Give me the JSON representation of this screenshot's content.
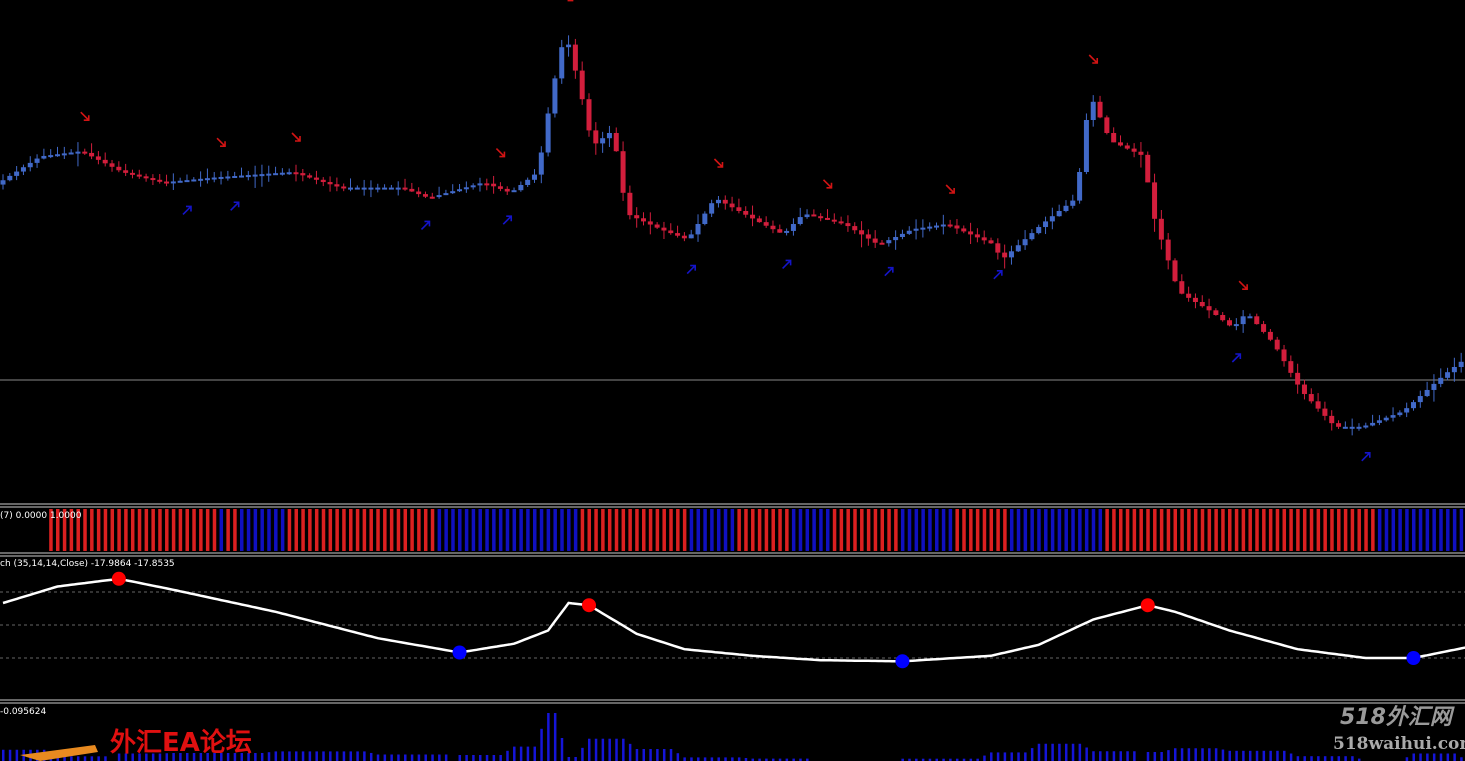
{
  "chart_data": {
    "type": "candlestick",
    "bars": 215,
    "colors": {
      "bull": "#4169c8",
      "bear": "#d21e3c",
      "up_arrow": "#1414c8",
      "down_arrow": "#d21414",
      "background": "#000000"
    },
    "price_path": [
      [
        0,
        63
      ],
      [
        6,
        68
      ],
      [
        12,
        69
      ],
      [
        18,
        65
      ],
      [
        24,
        63
      ],
      [
        32,
        64
      ],
      [
        43,
        65
      ],
      [
        50,
        62
      ],
      [
        59,
        62
      ],
      [
        63,
        60
      ],
      [
        71,
        63
      ],
      [
        75,
        61
      ],
      [
        79,
        65
      ],
      [
        81,
        80
      ],
      [
        83,
        92
      ],
      [
        85,
        82
      ],
      [
        87,
        70
      ],
      [
        90,
        73
      ],
      [
        92,
        57
      ],
      [
        97,
        54
      ],
      [
        101,
        52
      ],
      [
        105,
        60
      ],
      [
        112,
        55
      ],
      [
        115,
        53
      ],
      [
        118,
        57
      ],
      [
        124,
        55
      ],
      [
        129,
        51
      ],
      [
        134,
        54
      ],
      [
        139,
        55
      ],
      [
        146,
        51
      ],
      [
        147,
        48
      ],
      [
        153,
        55
      ],
      [
        158,
        60
      ],
      [
        160,
        80
      ],
      [
        163,
        71
      ],
      [
        168,
        68
      ],
      [
        169,
        58
      ],
      [
        173,
        42
      ],
      [
        178,
        38
      ],
      [
        181,
        35
      ],
      [
        183,
        38
      ],
      [
        187,
        32
      ],
      [
        191,
        23
      ],
      [
        196,
        16
      ],
      [
        200,
        16
      ],
      [
        206,
        19
      ],
      [
        212,
        26
      ],
      [
        215,
        29
      ]
    ],
    "down_signals": [
      12,
      32,
      43,
      73,
      83,
      105,
      121,
      139,
      160,
      182
    ],
    "up_signals": [
      27,
      34,
      62,
      74,
      101,
      115,
      130,
      146,
      181,
      200
    ],
    "panels": [
      {
        "label": "(7) 0.0000 1.0000",
        "segments": [
          [
            7,
            32,
            "red"
          ],
          [
            32,
            33,
            "blue"
          ],
          [
            33,
            35,
            "red"
          ],
          [
            35,
            42,
            "blue"
          ],
          [
            42,
            64,
            "red"
          ],
          [
            64,
            70,
            "blue"
          ],
          [
            70,
            85,
            "blue"
          ],
          [
            85,
            101,
            "red"
          ],
          [
            101,
            108,
            "blue"
          ],
          [
            108,
            116,
            "red"
          ],
          [
            116,
            122,
            "blue"
          ],
          [
            122,
            132,
            "red"
          ],
          [
            132,
            140,
            "blue"
          ],
          [
            140,
            148,
            "red"
          ],
          [
            148,
            162,
            "blue"
          ],
          [
            162,
            202,
            "red"
          ],
          [
            202,
            215,
            "blue"
          ]
        ]
      },
      {
        "label": "ch (35,14,14,Close) -17.9864 -17.8535",
        "line": [
          [
            0,
            70
          ],
          [
            8,
            85
          ],
          [
            17,
            92
          ],
          [
            25,
            82
          ],
          [
            40,
            62
          ],
          [
            55,
            38
          ],
          [
            67,
            25
          ],
          [
            75,
            33
          ],
          [
            80,
            45
          ],
          [
            83,
            70
          ],
          [
            86,
            68
          ],
          [
            93,
            42
          ],
          [
            100,
            28
          ],
          [
            110,
            22
          ],
          [
            120,
            18
          ],
          [
            132,
            17
          ],
          [
            145,
            22
          ],
          [
            152,
            32
          ],
          [
            160,
            55
          ],
          [
            168,
            68
          ],
          [
            172,
            62
          ],
          [
            180,
            45
          ],
          [
            190,
            28
          ],
          [
            200,
            20
          ],
          [
            207,
            20
          ],
          [
            215,
            30
          ]
        ],
        "highs": [
          17,
          86,
          168
        ],
        "lows": [
          67,
          132,
          207
        ],
        "levels": [
          80,
          50,
          20
        ]
      },
      {
        "label": "-0.095624"
      }
    ],
    "watermark": {
      "line1": "518外汇网",
      "line2": "518waihui.com",
      "logo_text": "外汇EA论坛"
    }
  }
}
